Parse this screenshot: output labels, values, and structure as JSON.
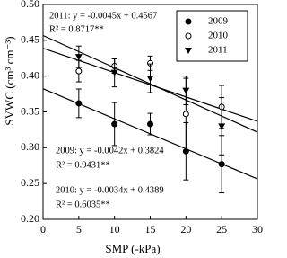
{
  "chart_data": {
    "type": "scatter",
    "x_label": "SMP (-kPa)",
    "y_label": "SVWC (cm³ cm⁻³)",
    "x": [
      5,
      10,
      15,
      20,
      25
    ],
    "xlim": [
      0,
      30
    ],
    "xticks": [
      0,
      5,
      10,
      15,
      20,
      25,
      30
    ],
    "ylim": [
      0.2,
      0.5
    ],
    "yticks": [
      {
        "value": 0.2,
        "label": "0.20"
      },
      0.25,
      {
        "value": 0.3,
        "label": "0.30"
      },
      0.35,
      {
        "value": 0.4,
        "label": "0.40"
      },
      0.45,
      {
        "value": 0.5,
        "label": "0.50"
      }
    ],
    "legend": "upper right",
    "series": [
      {
        "name": "2009",
        "color": "#000000",
        "marker": "filled-circle",
        "values": [
          0.362,
          0.333,
          0.333,
          0.295,
          0.277
        ],
        "errors": [
          0.02,
          0.03,
          0.015,
          0.04,
          0.04
        ],
        "fit": {
          "slope": -0.0042,
          "intercept": 0.3824
        }
      },
      {
        "name": "2010",
        "color": "#000000",
        "marker": "open-circle",
        "values": [
          0.407,
          0.414,
          0.418,
          0.347,
          0.357
        ],
        "errors": [
          0.015,
          0.01,
          0.01,
          0.05,
          0.03
        ],
        "fit": {
          "slope": -0.0034,
          "intercept": 0.4389
        }
      },
      {
        "name": "2011",
        "color": "#000000",
        "marker": "triangle-down",
        "values": [
          0.427,
          0.405,
          0.397,
          0.38,
          0.33
        ],
        "errors": [
          0.015,
          0.02,
          0.02,
          0.02,
          0.04
        ],
        "fit": {
          "slope": -0.0045,
          "intercept": 0.4567
        }
      }
    ],
    "annotations": [
      "2011: y = -0.0045x + 0.4567",
      "R² = 0.8717**",
      "2009: y = -0.0042x + 0.3824",
      "R² = 0.9431**",
      "2010: y = -0.0034x + 0.4389",
      "R² = 0.6035**"
    ]
  }
}
